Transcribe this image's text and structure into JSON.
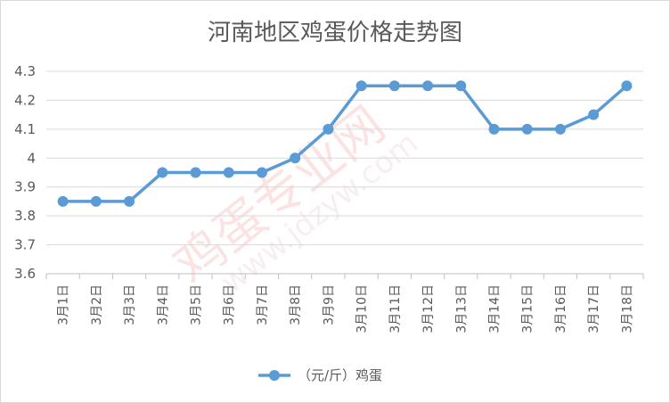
{
  "chart_data": {
    "type": "line",
    "title": "河南地区鸡蛋价格走势图",
    "xlabel": "",
    "ylabel": "",
    "categories": [
      "3月1日",
      "3月2日",
      "3月3日",
      "3月4日",
      "3月5日",
      "3月6日",
      "3月7日",
      "3月8日",
      "3月9日",
      "3月10日",
      "3月11日",
      "3月12日",
      "3月13日",
      "3月14日",
      "3月15日",
      "3月16日",
      "3月17日",
      "3月18日"
    ],
    "series": [
      {
        "name": "（元/斤）鸡蛋",
        "color": "#5b9bd5",
        "values": [
          3.85,
          3.85,
          3.85,
          3.95,
          3.95,
          3.95,
          3.95,
          4.0,
          4.1,
          4.25,
          4.25,
          4.25,
          4.25,
          4.1,
          4.1,
          4.1,
          4.15,
          4.25
        ]
      }
    ],
    "ylim": [
      3.6,
      4.3
    ],
    "yticks": [
      "3.6",
      "3.7",
      "3.8",
      "3.9",
      "4",
      "4.1",
      "4.2",
      "4.3"
    ],
    "grid": true,
    "legend_position": "bottom"
  }
}
